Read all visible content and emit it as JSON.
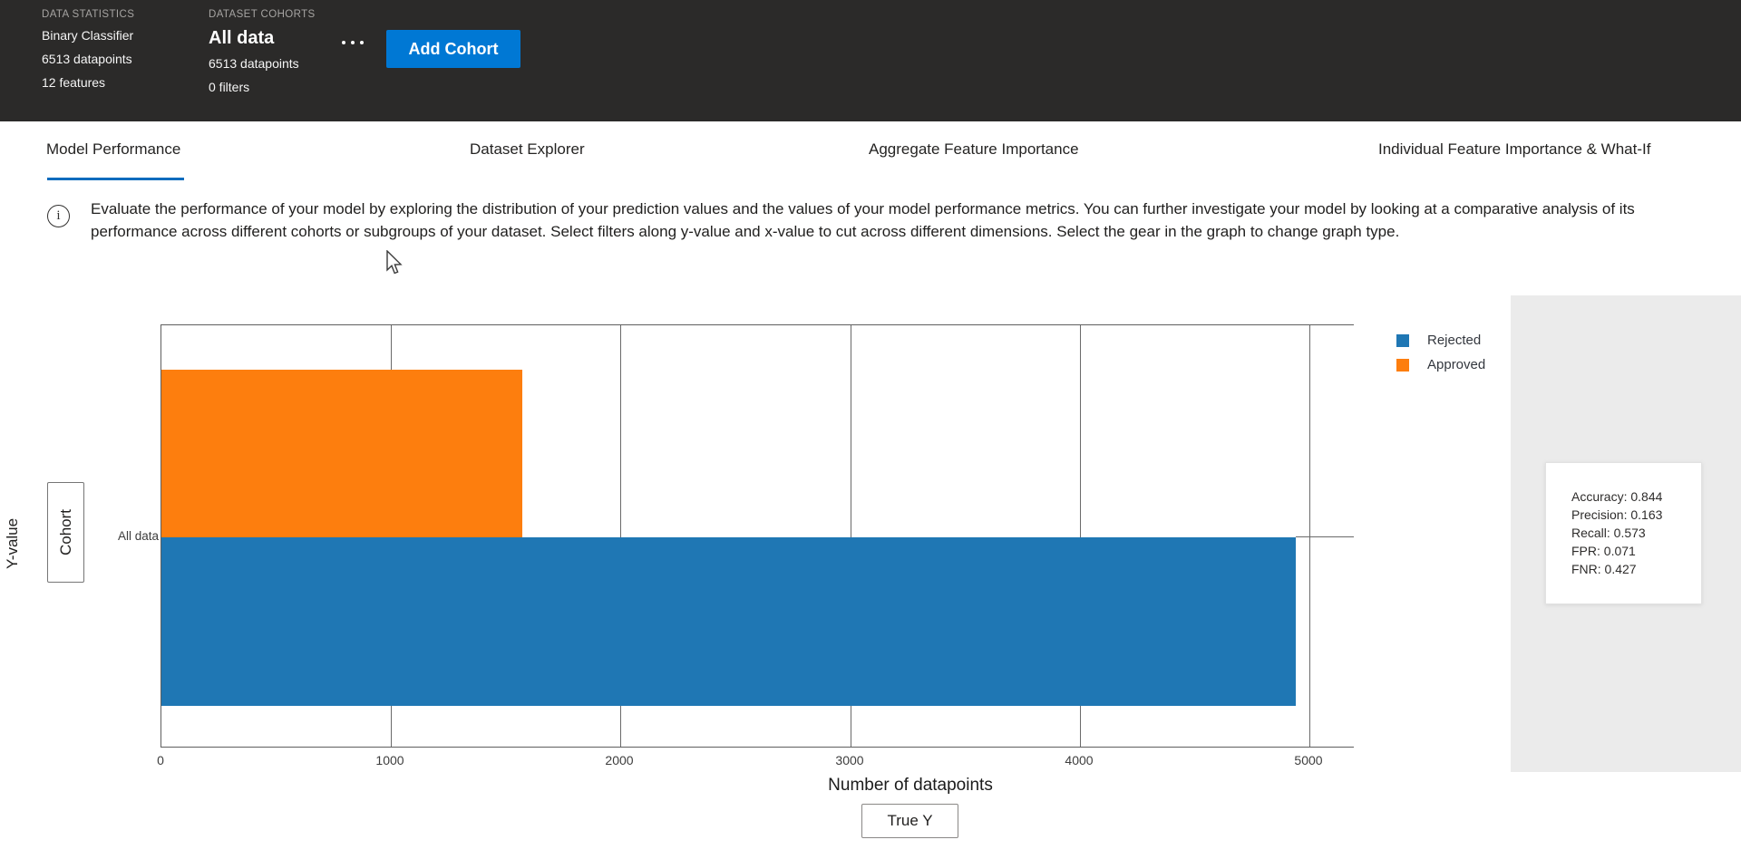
{
  "header": {
    "data_statistics": {
      "label": "DATA STATISTICS",
      "lines": [
        "Binary Classifier",
        "6513 datapoints",
        "12 features"
      ]
    },
    "dataset_cohorts": {
      "label": "DATASET COHORTS",
      "cohort_name": "All data",
      "lines": [
        "6513 datapoints",
        "0 filters"
      ]
    },
    "more_options_icon": "ellipsis-horizontal",
    "add_cohort_label": "Add Cohort",
    "accent_color": "#0078d4",
    "background_color": "#2b2a29"
  },
  "tabs": {
    "items": [
      {
        "label": "Model Performance",
        "active": true
      },
      {
        "label": "Dataset Explorer",
        "active": false
      },
      {
        "label": "Aggregate Feature Importance",
        "active": false
      },
      {
        "label": "Individual Feature Importance & What-If",
        "active": false
      }
    ],
    "active_underline_color": "#0f6cbd"
  },
  "info": {
    "icon": "info-circle-icon",
    "icon_glyph": "i",
    "text": "Evaluate the performance of your model by exploring the distribution of your prediction values and the values of your model performance metrics. You can further investigate your model by looking at a comparative analysis of its performance across different cohorts or subgroups of your dataset. Select filters along y-value and x-value to cut across different dimensions. Select the gear in the graph to change graph type."
  },
  "chart_controls": {
    "y_axis_button_label": "Cohort",
    "y_axis_title": "Y-value",
    "x_axis_button_label": "True Y",
    "x_axis_title": "Number of datapoints"
  },
  "chart_data": {
    "type": "bar",
    "orientation": "horizontal",
    "categories": [
      "All data"
    ],
    "series": [
      {
        "name": "Approved",
        "values": [
          1572
        ],
        "color": "#fd7e0e"
      },
      {
        "name": "Rejected",
        "values": [
          4941
        ],
        "color": "#1f77b4"
      }
    ],
    "title": "",
    "xlabel": "Number of datapoints",
    "ylabel": "Cohort",
    "xlim": [
      0,
      5200
    ],
    "xticks": [
      0,
      1000,
      2000,
      3000,
      4000,
      5000
    ],
    "grid": true,
    "legend_position": "top-right",
    "legend": [
      {
        "label": "Rejected",
        "color": "#1f77b4"
      },
      {
        "label": "Approved",
        "color": "#fd7e0e"
      }
    ]
  },
  "metrics_panel": {
    "metrics": [
      {
        "name": "Accuracy",
        "value": "0.844"
      },
      {
        "name": "Precision",
        "value": "0.163"
      },
      {
        "name": "Recall",
        "value": "0.573"
      },
      {
        "name": "FPR",
        "value": "0.071"
      },
      {
        "name": "FNR",
        "value": "0.427"
      }
    ]
  }
}
